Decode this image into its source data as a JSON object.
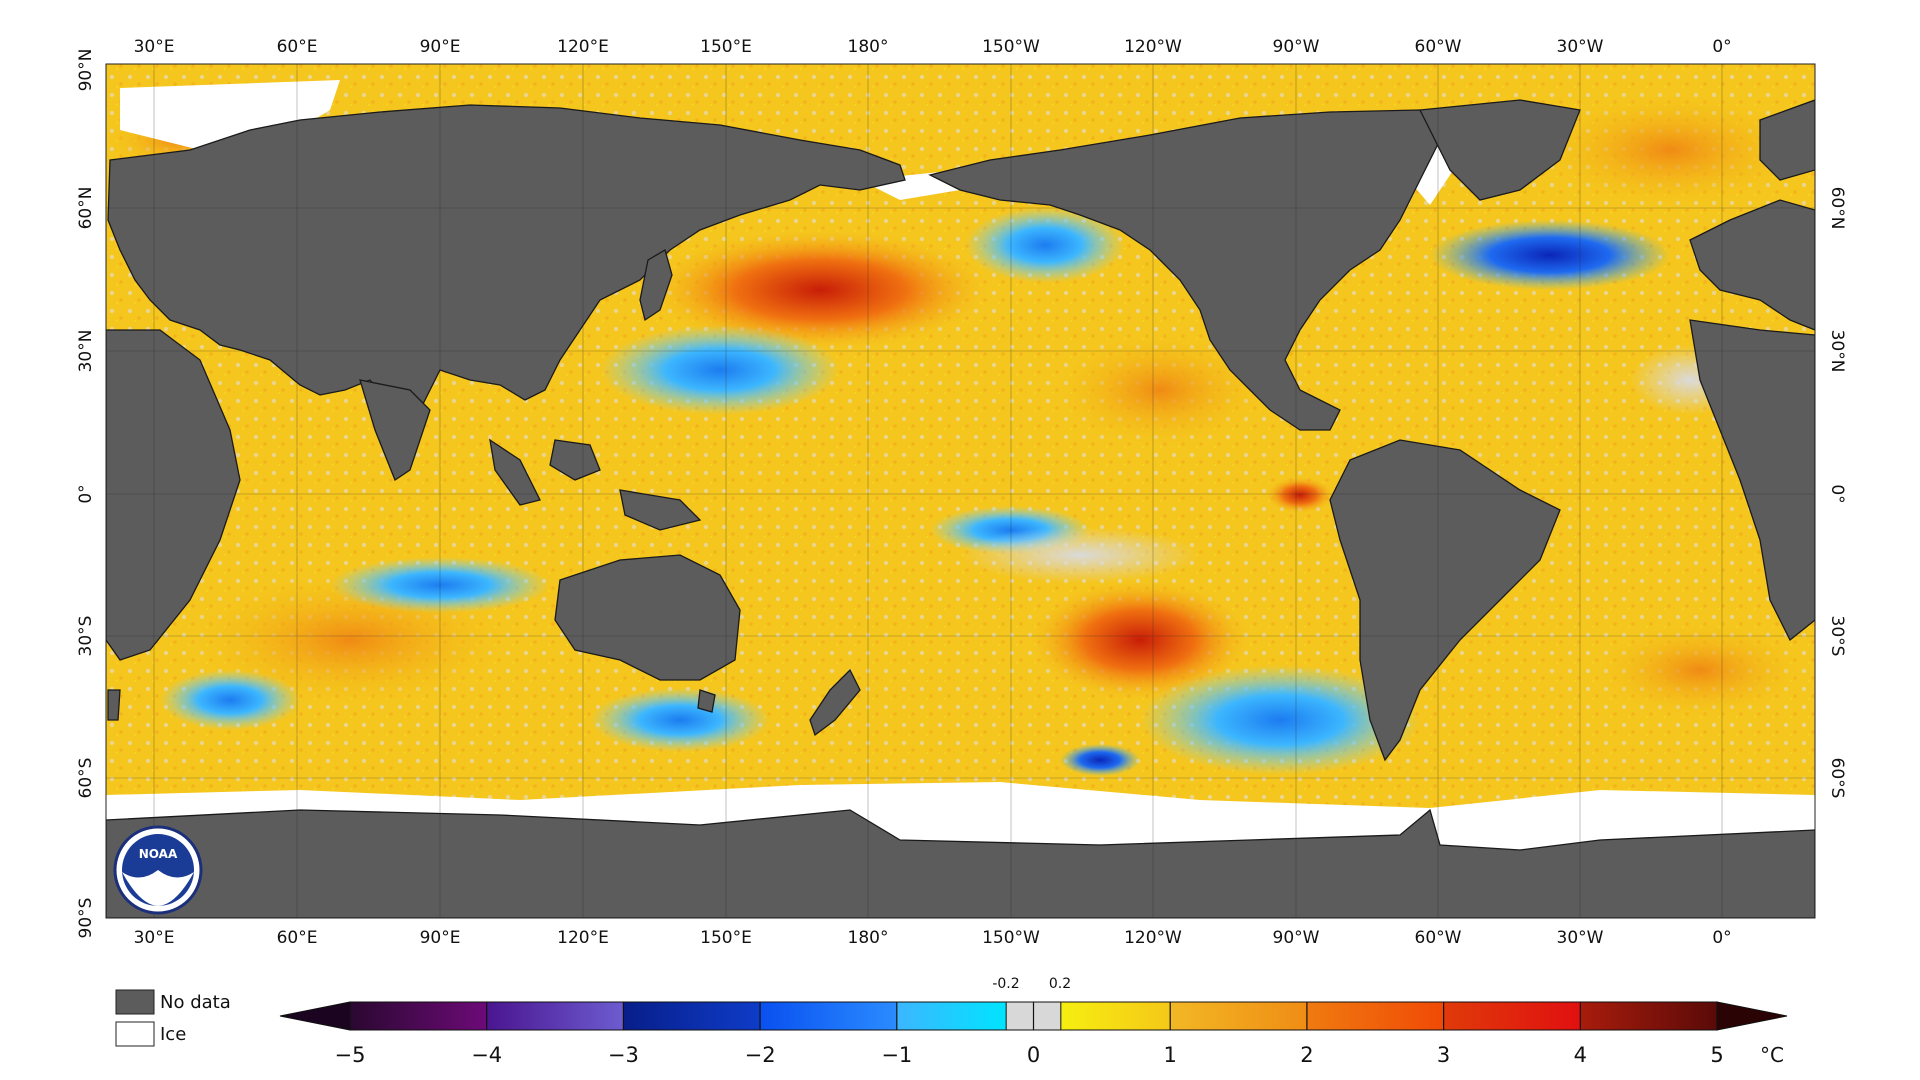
{
  "map": {
    "top_lon_labels": [
      "30°E",
      "60°E",
      "90°E",
      "120°E",
      "150°E",
      "180°",
      "150°W",
      "120°W",
      "90°W",
      "60°W",
      "30°W",
      "0°"
    ],
    "bottom_lon_labels": [
      "30°E",
      "60°E",
      "90°E",
      "120°E",
      "150°E",
      "180°",
      "150°W",
      "120°W",
      "90°W",
      "60°W",
      "30°W",
      "0°"
    ],
    "left_lat_labels": [
      "90°N",
      "60°N",
      "30°N",
      "0°",
      "30°S",
      "60°S",
      "90°S"
    ],
    "right_lat_labels": [
      "60°N",
      "30°N",
      "0°",
      "30°S",
      "60°S"
    ]
  },
  "logo": {
    "text": "NOAA"
  },
  "legend": {
    "no_data_label": "No data",
    "ice_label": "Ice",
    "no_data_color": "#5c5c5c",
    "ice_color": "#ffffff"
  },
  "colorbar": {
    "ticks": [
      "−5",
      "−4",
      "−3",
      "−2",
      "−1",
      "0",
      "1",
      "2",
      "3",
      "4",
      "5"
    ],
    "fine_ticks": [
      "-0.2",
      "0.2"
    ],
    "unit": "°C",
    "segments": [
      [
        "#2a0830",
        "#6d0a78"
      ],
      [
        "#4a1590",
        "#6d5cd0"
      ],
      [
        "#081e8a",
        "#0e3cc8"
      ],
      [
        "#0a50f0",
        "#2a8cff"
      ],
      [
        "#3cb6ff",
        "#00e4ff"
      ],
      [
        "#d8d8d8",
        "#d8d8d8"
      ],
      [
        "#f6ee10",
        "#f5c818"
      ],
      [
        "#f2b824",
        "#f08c14"
      ],
      [
        "#f07a10",
        "#f04a06"
      ],
      [
        "#e03a0a",
        "#e01010"
      ],
      [
        "#a81c0c",
        "#5a0a08"
      ]
    ]
  }
}
